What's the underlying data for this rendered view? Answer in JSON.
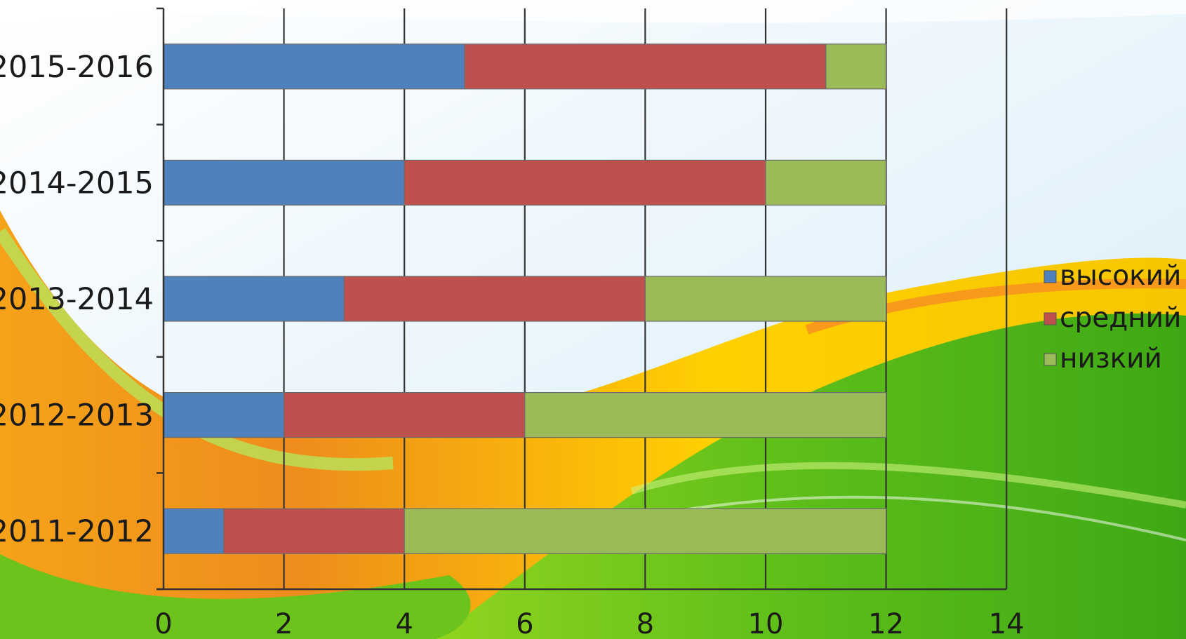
{
  "colors": {
    "series_high": "#4f81bd",
    "series_mid": "#c0504d",
    "series_low": "#9bbb59",
    "grid": "#333333",
    "bg_orange": "#f19a1c",
    "bg_yellow": "#ffd400",
    "bg_green": "#57b81c",
    "bg_lime": "#9ee020",
    "bg_sky": "#e3f2fb"
  },
  "chart_data": {
    "type": "bar",
    "orientation": "horizontal",
    "stacked": true,
    "categories": [
      "2011-2012",
      "2012-2013",
      "2013-2014",
      "2014-2015",
      "2015-2016"
    ],
    "series": [
      {
        "name": "высокий",
        "values": [
          1,
          2,
          3,
          4,
          5
        ]
      },
      {
        "name": "средний",
        "values": [
          3,
          4,
          5,
          6,
          6
        ]
      },
      {
        "name": "низкий",
        "values": [
          8,
          6,
          4,
          2,
          1
        ]
      }
    ],
    "xlim": [
      0,
      14
    ],
    "xticks": [
      "0",
      "2",
      "4",
      "6",
      "8",
      "10",
      "12",
      "14"
    ],
    "grid": true,
    "legend_position": "right"
  }
}
